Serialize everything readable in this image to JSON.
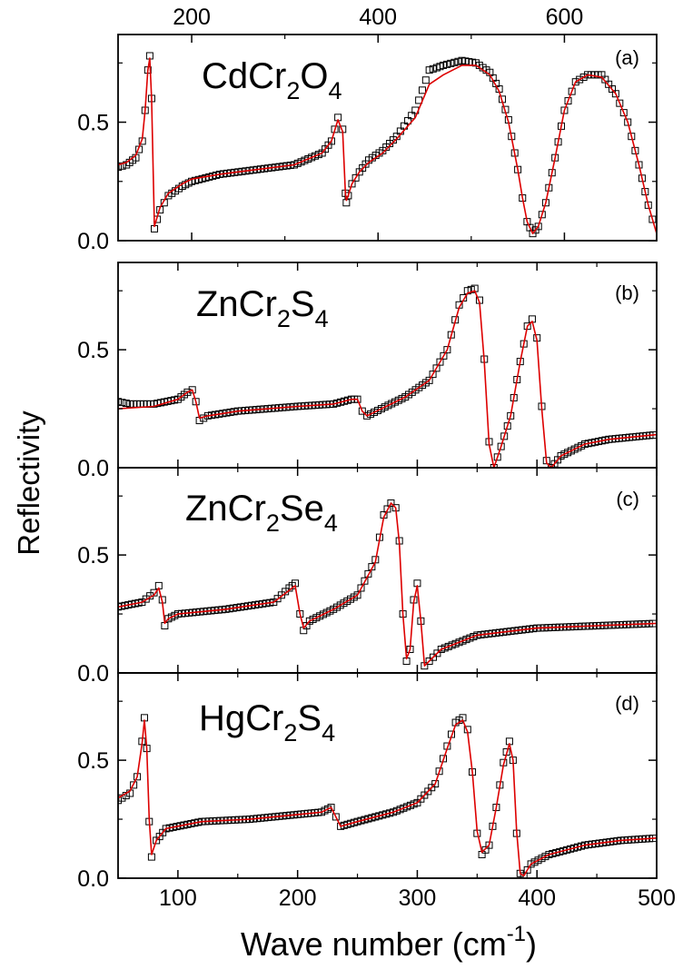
{
  "figure": {
    "ylabel": "Reflectivity",
    "xlabel_main": "Wave number (cm",
    "xlabel_sup": "-1",
    "xlabel_close": ")",
    "colors": {
      "fit": "#dd0000",
      "data": "#000000",
      "axis": "#000000"
    }
  },
  "chart_data": [
    {
      "type": "line",
      "panel": "(a)",
      "compound": {
        "parts": [
          {
            "t": "CdCr",
            "sub": false
          },
          {
            "t": "2",
            "sub": true
          },
          {
            "t": "O",
            "sub": false
          },
          {
            "t": "4",
            "sub": true
          }
        ]
      },
      "xlim": [
        121,
        699
      ],
      "ylim": [
        0,
        0.87
      ],
      "x_axis_position": "top",
      "xticks": [
        200,
        400,
        600
      ],
      "yticks": [
        0.0,
        0.5
      ],
      "ytick_labels": [
        "0.0",
        "0.5"
      ],
      "series": [
        {
          "role": "fit",
          "x": [
            121,
            130,
            140,
            147,
            150,
            153,
            155,
            157,
            160,
            166,
            175,
            190,
            200,
            230,
            270,
            310,
            340,
            350,
            357,
            362,
            365,
            366,
            368,
            372,
            380,
            390,
            405,
            420,
            440,
            455,
            470,
            490,
            505,
            520,
            530,
            540,
            550,
            555,
            560,
            566,
            572,
            580,
            590,
            600,
            612,
            625,
            640,
            655,
            668,
            680,
            690,
            699
          ],
          "y": [
            0.32,
            0.33,
            0.36,
            0.43,
            0.55,
            0.72,
            0.77,
            0.6,
            0.06,
            0.14,
            0.2,
            0.24,
            0.26,
            0.28,
            0.3,
            0.32,
            0.37,
            0.42,
            0.51,
            0.46,
            0.2,
            0.17,
            0.19,
            0.24,
            0.29,
            0.33,
            0.37,
            0.43,
            0.52,
            0.66,
            0.7,
            0.74,
            0.74,
            0.7,
            0.63,
            0.5,
            0.3,
            0.18,
            0.08,
            0.03,
            0.06,
            0.16,
            0.35,
            0.55,
            0.67,
            0.7,
            0.69,
            0.62,
            0.5,
            0.32,
            0.15,
            0.03
          ]
        },
        {
          "role": "data",
          "x": [
            121,
            130,
            140,
            147,
            150,
            153,
            155,
            157,
            160,
            166,
            175,
            190,
            200,
            230,
            270,
            310,
            340,
            350,
            357,
            362,
            365,
            366,
            368,
            372,
            380,
            390,
            405,
            420,
            440,
            455,
            463,
            470,
            490,
            505,
            520,
            530,
            540,
            550,
            555,
            560,
            566,
            572,
            580,
            590,
            600,
            612,
            625,
            640,
            655,
            668,
            680,
            690,
            699
          ],
          "y": [
            0.31,
            0.32,
            0.35,
            0.42,
            0.55,
            0.72,
            0.78,
            0.6,
            0.05,
            0.13,
            0.19,
            0.23,
            0.25,
            0.28,
            0.3,
            0.32,
            0.37,
            0.42,
            0.52,
            0.47,
            0.2,
            0.16,
            0.19,
            0.24,
            0.29,
            0.34,
            0.38,
            0.44,
            0.55,
            0.72,
            0.73,
            0.74,
            0.76,
            0.75,
            0.71,
            0.64,
            0.51,
            0.3,
            0.18,
            0.08,
            0.03,
            0.06,
            0.16,
            0.35,
            0.55,
            0.67,
            0.7,
            0.7,
            0.62,
            0.5,
            0.32,
            0.15,
            0.03
          ]
        }
      ]
    },
    {
      "type": "line",
      "panel": "(b)",
      "compound": {
        "parts": [
          {
            "t": "ZnCr",
            "sub": false
          },
          {
            "t": "2",
            "sub": true
          },
          {
            "t": "S",
            "sub": false
          },
          {
            "t": "4",
            "sub": true
          }
        ]
      },
      "xlim": [
        50,
        500
      ],
      "ylim": [
        0,
        0.87
      ],
      "yticks": [
        0.0,
        0.5
      ],
      "ytick_labels": [
        "0.0",
        "0.5"
      ],
      "series": [
        {
          "role": "fit",
          "x": [
            50,
            80,
            100,
            108,
            112,
            115,
            118,
            125,
            150,
            200,
            230,
            245,
            250,
            254,
            258,
            270,
            290,
            310,
            325,
            335,
            342,
            348,
            352,
            356,
            360,
            364,
            370,
            378,
            386,
            392,
            396,
            400,
            404,
            408,
            412,
            420,
            440,
            460,
            480,
            500
          ],
          "y": [
            0.25,
            0.26,
            0.29,
            0.32,
            0.33,
            0.28,
            0.21,
            0.22,
            0.24,
            0.26,
            0.27,
            0.29,
            0.29,
            0.24,
            0.22,
            0.25,
            0.3,
            0.37,
            0.5,
            0.68,
            0.74,
            0.75,
            0.7,
            0.45,
            0.1,
            0.0,
            0.09,
            0.22,
            0.45,
            0.6,
            0.62,
            0.54,
            0.25,
            0.02,
            0.0,
            0.05,
            0.1,
            0.12,
            0.13,
            0.14
          ]
        },
        {
          "role": "data",
          "x": [
            50,
            60,
            80,
            100,
            108,
            112,
            115,
            118,
            125,
            150,
            200,
            230,
            245,
            250,
            254,
            258,
            270,
            290,
            310,
            325,
            335,
            342,
            348,
            352,
            356,
            360,
            364,
            370,
            378,
            386,
            392,
            396,
            400,
            404,
            408,
            412,
            420,
            440,
            460,
            480,
            500
          ],
          "y": [
            0.28,
            0.27,
            0.27,
            0.29,
            0.32,
            0.33,
            0.28,
            0.2,
            0.22,
            0.24,
            0.26,
            0.27,
            0.29,
            0.29,
            0.24,
            0.22,
            0.25,
            0.3,
            0.37,
            0.5,
            0.69,
            0.75,
            0.76,
            0.71,
            0.46,
            0.11,
            0.0,
            0.09,
            0.22,
            0.45,
            0.6,
            0.63,
            0.55,
            0.26,
            0.03,
            0.0,
            0.05,
            0.1,
            0.12,
            0.13,
            0.14
          ]
        }
      ]
    },
    {
      "type": "line",
      "panel": "(c)",
      "compound": {
        "parts": [
          {
            "t": "ZnCr",
            "sub": false
          },
          {
            "t": "2",
            "sub": true
          },
          {
            "t": "Se",
            "sub": false
          },
          {
            "t": "4",
            "sub": true
          }
        ]
      },
      "xlim": [
        50,
        500
      ],
      "ylim": [
        0,
        0.87
      ],
      "yticks": [
        0.0,
        0.5
      ],
      "ytick_labels": [
        "0.0",
        "0.5"
      ],
      "series": [
        {
          "role": "fit",
          "x": [
            50,
            70,
            80,
            84,
            87,
            89,
            92,
            100,
            140,
            180,
            193,
            198,
            202,
            205,
            210,
            230,
            250,
            265,
            272,
            278,
            282,
            285,
            288,
            291,
            294,
            297,
            300,
            303,
            306,
            310,
            320,
            350,
            400,
            450,
            500
          ],
          "y": [
            0.28,
            0.3,
            0.33,
            0.36,
            0.3,
            0.21,
            0.23,
            0.25,
            0.27,
            0.3,
            0.35,
            0.37,
            0.25,
            0.19,
            0.22,
            0.27,
            0.33,
            0.47,
            0.66,
            0.72,
            0.7,
            0.55,
            0.25,
            0.06,
            0.1,
            0.3,
            0.37,
            0.22,
            0.03,
            0.05,
            0.1,
            0.16,
            0.19,
            0.2,
            0.21
          ]
        },
        {
          "role": "data",
          "x": [
            50,
            70,
            80,
            84,
            87,
            89,
            92,
            100,
            140,
            180,
            193,
            198,
            202,
            205,
            210,
            230,
            250,
            265,
            272,
            278,
            282,
            285,
            288,
            291,
            294,
            297,
            300,
            303,
            306,
            310,
            320,
            350,
            400,
            450,
            500
          ],
          "y": [
            0.28,
            0.3,
            0.34,
            0.37,
            0.31,
            0.2,
            0.23,
            0.25,
            0.27,
            0.3,
            0.36,
            0.38,
            0.25,
            0.18,
            0.22,
            0.27,
            0.33,
            0.48,
            0.67,
            0.72,
            0.7,
            0.56,
            0.25,
            0.05,
            0.1,
            0.31,
            0.38,
            0.22,
            0.03,
            0.05,
            0.1,
            0.16,
            0.19,
            0.2,
            0.21
          ]
        }
      ]
    },
    {
      "type": "line",
      "panel": "(d)",
      "compound": {
        "parts": [
          {
            "t": "HgCr",
            "sub": false
          },
          {
            "t": "2",
            "sub": true
          },
          {
            "t": "S",
            "sub": false
          },
          {
            "t": "4",
            "sub": true
          }
        ]
      },
      "xlim": [
        50,
        500
      ],
      "ylim": [
        0,
        0.87
      ],
      "xticks": [
        100,
        200,
        300,
        400,
        500
      ],
      "yticks": [
        0.0,
        0.5
      ],
      "ytick_labels": [
        "0.0",
        "0.5"
      ],
      "series": [
        {
          "role": "fit",
          "x": [
            50,
            60,
            66,
            70,
            72,
            74,
            76,
            78,
            82,
            90,
            120,
            160,
            200,
            220,
            228,
            232,
            236,
            250,
            280,
            300,
            315,
            325,
            332,
            338,
            342,
            346,
            350,
            354,
            360,
            366,
            372,
            377,
            380,
            383,
            386,
            389,
            395,
            410,
            440,
            470,
            500
          ],
          "y": [
            0.34,
            0.37,
            0.43,
            0.57,
            0.67,
            0.55,
            0.25,
            0.1,
            0.16,
            0.21,
            0.24,
            0.25,
            0.27,
            0.28,
            0.3,
            0.26,
            0.22,
            0.24,
            0.28,
            0.32,
            0.4,
            0.55,
            0.65,
            0.67,
            0.62,
            0.45,
            0.2,
            0.11,
            0.14,
            0.3,
            0.48,
            0.57,
            0.5,
            0.2,
            0.02,
            0.01,
            0.06,
            0.1,
            0.14,
            0.16,
            0.17
          ]
        },
        {
          "role": "data",
          "x": [
            50,
            60,
            66,
            70,
            72,
            74,
            76,
            78,
            82,
            90,
            120,
            160,
            200,
            220,
            228,
            232,
            236,
            250,
            280,
            300,
            315,
            325,
            332,
            338,
            342,
            346,
            350,
            354,
            360,
            366,
            372,
            377,
            380,
            383,
            386,
            389,
            395,
            410,
            440,
            470,
            500
          ],
          "y": [
            0.33,
            0.36,
            0.43,
            0.58,
            0.68,
            0.55,
            0.24,
            0.09,
            0.16,
            0.21,
            0.24,
            0.25,
            0.27,
            0.28,
            0.3,
            0.26,
            0.22,
            0.24,
            0.28,
            0.32,
            0.4,
            0.56,
            0.66,
            0.68,
            0.63,
            0.45,
            0.19,
            0.1,
            0.14,
            0.3,
            0.49,
            0.58,
            0.5,
            0.19,
            0.02,
            0.01,
            0.06,
            0.1,
            0.14,
            0.16,
            0.17
          ]
        }
      ]
    }
  ]
}
